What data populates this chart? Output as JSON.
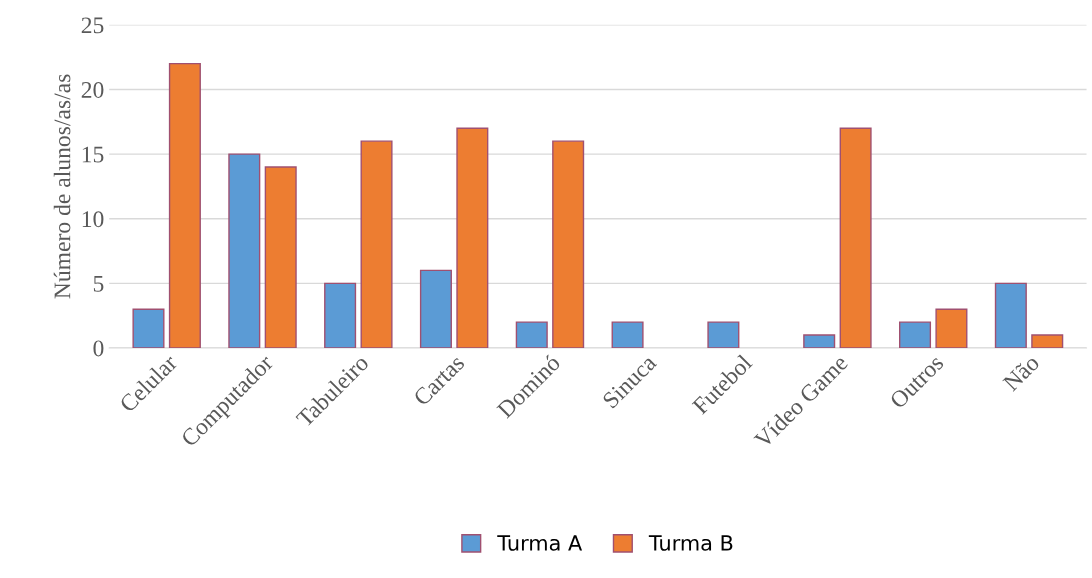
{
  "chart_data": {
    "type": "bar",
    "ylabel": "Número de alunos/as/as",
    "categories": [
      "Celular",
      "Computador",
      "Tabuleiro",
      "Cartas",
      "Dominó",
      "Sinuca",
      "Futebol",
      "Vídeo Game",
      "Outros",
      "Não"
    ],
    "series": [
      {
        "name": "Turma A",
        "color": "#5b9bd5",
        "values": [
          3,
          15,
          5,
          6,
          2,
          2,
          2,
          1,
          2,
          5
        ]
      },
      {
        "name": "Turma B",
        "color": "#ed7d31",
        "values": [
          22,
          14,
          16,
          17,
          16,
          null,
          null,
          17,
          3,
          1
        ]
      }
    ],
    "ylim": [
      0,
      25
    ],
    "yticks": [
      0,
      5,
      10,
      15,
      20,
      25
    ],
    "grid": "y",
    "legend": "bottom"
  }
}
